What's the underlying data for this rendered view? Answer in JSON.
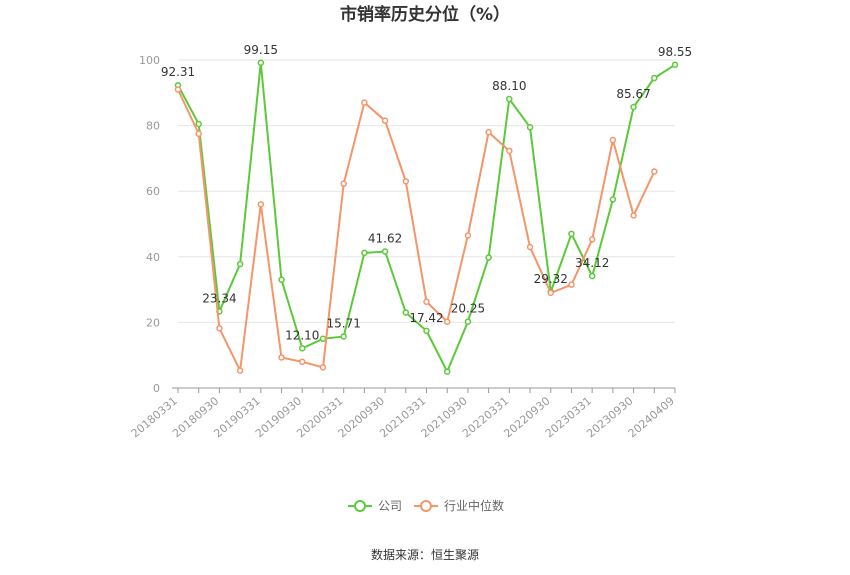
{
  "chart_data": {
    "type": "line",
    "title": "市销率历史分位（%）",
    "source": "数据来源：恒生聚源",
    "ylim": [
      0,
      100
    ],
    "y_ticks": [
      "0",
      "20",
      "40",
      "60",
      "80",
      "100"
    ],
    "x": [
      "20180331",
      "20180630",
      "20180930",
      "20181231",
      "20190331",
      "20190630",
      "20190930",
      "20191231",
      "20200331",
      "20200630",
      "20200930",
      "20201231",
      "20210331",
      "20210630",
      "20210930",
      "20211231",
      "20220331",
      "20220630",
      "20220930",
      "20221231",
      "20230331",
      "20230630",
      "20230930",
      "20231231",
      "20240409"
    ],
    "x_tick_labels": [
      "20180331",
      "20180930",
      "20190331",
      "20190930",
      "20200331",
      "20200930",
      "20210331",
      "20210930",
      "20220331",
      "20220930",
      "20230331",
      "20230930",
      "20240409"
    ],
    "grid": true,
    "legend_position": "bottom",
    "series": [
      {
        "name": "公司",
        "color": "#5cc93a",
        "values": [
          92.31,
          80.5,
          23.34,
          37.8,
          99.15,
          33.0,
          12.1,
          15.0,
          15.71,
          41.2,
          41.62,
          23.0,
          17.42,
          5.0,
          20.25,
          39.8,
          88.1,
          79.5,
          29.32,
          47.0,
          34.12,
          57.5,
          85.67,
          94.5,
          98.55
        ],
        "labels": {
          "0": "92.31",
          "2": "23.34",
          "4": "99.15",
          "6": "12.10",
          "8": "15.71",
          "10": "41.62",
          "12": "17.42",
          "14": "20.25",
          "16": "88.10",
          "18": "29.32",
          "20": "34.12",
          "22": "85.67",
          "24": "98.55"
        }
      },
      {
        "name": "行业中位数",
        "color": "#f4956a",
        "values": [
          91.0,
          77.5,
          18.2,
          5.3,
          56.0,
          9.3,
          8.0,
          6.3,
          62.3,
          87.0,
          81.5,
          63.0,
          26.3,
          20.2,
          46.5,
          78.0,
          72.3,
          43.0,
          29.0,
          31.5,
          45.3,
          75.6,
          52.6,
          66.0,
          null
        ]
      }
    ]
  }
}
